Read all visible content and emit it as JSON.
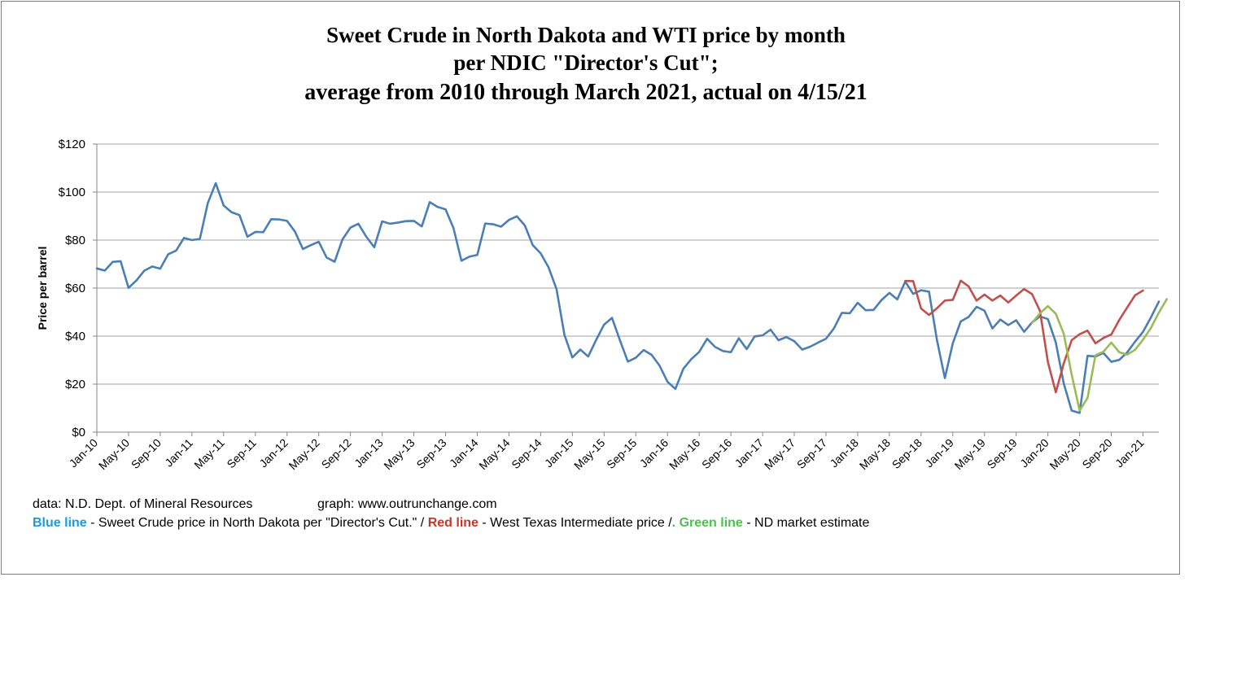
{
  "title": {
    "line1": "Sweet Crude in North Dakota and WTI price by month",
    "line2": "per NDIC \"Director's Cut\";",
    "line3": "average from 2010 through March 2021, actual on 4/15/21"
  },
  "notes": {
    "source": "data: N.D. Dept. of Mineral Resources",
    "graph": "graph:  www.outrunchange.com",
    "legend_blue": "Blue line",
    "legend_blue_text": " - Sweet Crude price in North Dakota per \"Director's Cut.\"  /  ",
    "legend_red": "Red line",
    "legend_red_text": " - West Texas Intermediate price  /",
    "legend_green": ". Green line",
    "legend_green_text": " - ND market estimate"
  },
  "colors": {
    "blue": "#4a7eb5",
    "red": "#c0504d",
    "green": "#9bbb59",
    "grid": "#a6a6a6"
  },
  "chart_data": {
    "type": "line",
    "ylabel": "Price per barrel",
    "ylim": [
      0,
      120
    ],
    "y_ticks": [
      0,
      20,
      40,
      60,
      80,
      100,
      120
    ],
    "y_tick_labels": [
      "$0",
      "$20",
      "$40",
      "$60",
      "$80",
      "$100",
      "$120"
    ],
    "x_tick_labels": [
      "Jan-10",
      "May-10",
      "Sep-10",
      "Jan-11",
      "May-11",
      "Sep-11",
      "Jan-12",
      "May-12",
      "Sep-12",
      "Jan-13",
      "May-13",
      "Sep-13",
      "Jan-14",
      "May-14",
      "Sep-14",
      "Jan-15",
      "May-15",
      "Sep-15",
      "Jan-16",
      "May-16",
      "Sep-16",
      "Jan-17",
      "May-17",
      "Sep-17",
      "Jan-18",
      "May-18",
      "Sep-18",
      "Jan-19",
      "May-19",
      "Sep-19",
      "Jan-20",
      "May-20",
      "Sep-20",
      "Jan-21"
    ],
    "x_range": [
      "Jan-10",
      "Mar-21"
    ],
    "grid": true,
    "series": [
      {
        "name": "Sweet Crude price in North Dakota",
        "color": "#4a7eb5",
        "start": "Jan-10",
        "values": [
          68.2,
          67.3,
          70.9,
          71.2,
          60.1,
          63.2,
          67.3,
          69.0,
          68.1,
          74.1,
          75.6,
          80.9,
          80.0,
          80.5,
          95.4,
          103.7,
          94.4,
          91.6,
          90.4,
          81.4,
          83.4,
          83.3,
          88.7,
          88.6,
          88.0,
          83.5,
          76.3,
          77.9,
          79.3,
          72.7,
          71.0,
          80.3,
          85.2,
          86.8,
          81.4,
          77.0,
          87.8,
          86.8,
          87.3,
          87.9,
          88.0,
          85.7,
          95.8,
          93.8,
          92.8,
          85.0,
          71.4,
          73.1,
          73.8,
          86.9,
          86.6,
          85.6,
          88.4,
          89.9,
          86.1,
          77.9,
          74.5,
          68.6,
          59.6,
          40.5,
          31.1,
          34.4,
          31.5,
          38.4,
          44.8,
          47.6,
          38.3,
          29.4,
          31.0,
          34.2,
          32.2,
          27.7,
          21.0,
          18.0,
          26.4,
          30.4,
          33.4,
          38.9,
          35.5,
          33.8,
          33.3,
          39.1,
          34.6,
          39.9,
          40.3,
          42.7,
          38.3,
          39.6,
          37.9,
          34.4,
          35.6,
          37.3,
          38.9,
          43.2,
          49.7,
          49.5,
          53.9,
          50.8,
          50.9,
          55.0,
          58.0,
          55.3,
          62.7,
          57.6,
          59.1,
          58.5,
          38.4,
          22.5,
          37.0,
          46.1,
          48.0,
          52.2,
          50.6,
          43.2,
          46.9,
          44.6,
          46.6,
          41.8,
          45.7,
          48.2,
          47.1,
          37.3,
          20.3,
          9.0,
          8.0,
          31.8,
          31.5,
          33.0,
          29.3,
          30.1,
          33.2,
          37.7,
          41.8,
          47.8,
          54.4
        ]
      },
      {
        "name": "West Texas Intermediate price",
        "color": "#c0504d",
        "start": "Jul-18",
        "values": [
          63.0,
          62.9,
          51.5,
          48.8,
          51.6,
          54.8,
          55.1,
          63.1,
          60.7,
          54.8,
          57.3,
          54.8,
          56.9,
          54.0,
          56.9,
          59.6,
          57.5,
          50.5,
          29.2,
          16.6,
          28.6,
          38.3,
          40.8,
          42.3,
          37.0,
          39.2,
          40.7,
          46.7,
          51.9,
          57.0,
          59.0
        ]
      },
      {
        "name": "ND market estimate",
        "color": "#9bbb59",
        "start": "Nov-19",
        "values": [
          45.5,
          49.5,
          52.5,
          49.3,
          41.0,
          24.0,
          9.0,
          14.2,
          32.0,
          33.5,
          37.3,
          33.3,
          32.3,
          34.3,
          38.5,
          43.4,
          49.8,
          55.4
        ]
      }
    ]
  }
}
